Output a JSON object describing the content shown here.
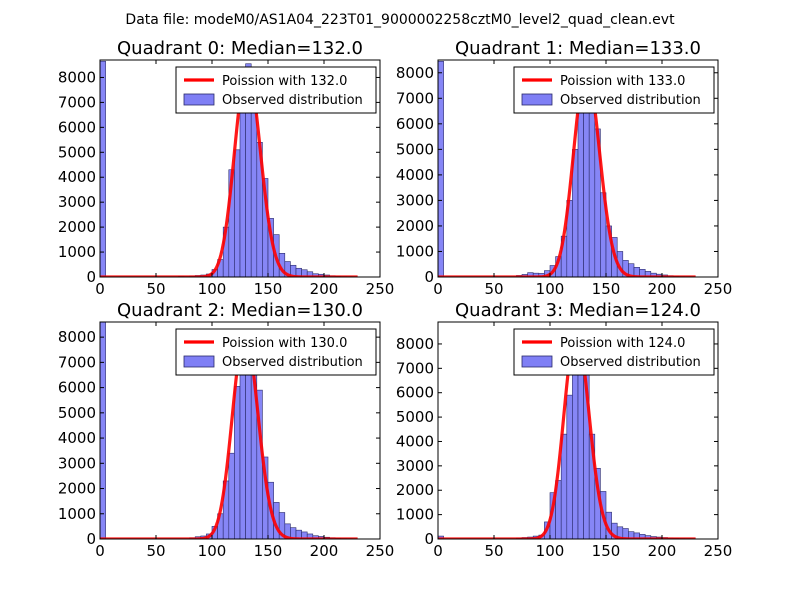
{
  "figure": {
    "suptitle": "Data file: modeM0/AS1A04_223T01_9000002258cztM0_level2_quad_clean.evt"
  },
  "chart_data": [
    {
      "type": "bar",
      "title": "Quadrant 0: Median=132.0",
      "xlabel": "",
      "ylabel": "",
      "xlim": [
        0,
        250
      ],
      "ylim": [
        0,
        8700
      ],
      "x_ticks": [
        0,
        50,
        100,
        150,
        200,
        250
      ],
      "y_ticks": [
        0,
        1000,
        2000,
        3000,
        4000,
        5000,
        6000,
        7000,
        8000
      ],
      "legend_position": "top-right",
      "series": [
        {
          "name": "Observed distribution",
          "kind": "histogram",
          "color": "#7f7ff5",
          "bin_width": 5,
          "bins": [
            [
              0,
              8650
            ],
            [
              70,
              30
            ],
            [
              75,
              20
            ],
            [
              80,
              40
            ],
            [
              85,
              60
            ],
            [
              90,
              80
            ],
            [
              95,
              120
            ],
            [
              100,
              300
            ],
            [
              105,
              700
            ],
            [
              110,
              2000
            ],
            [
              115,
              4300
            ],
            [
              120,
              5100
            ],
            [
              125,
              7050
            ],
            [
              130,
              8550
            ],
            [
              135,
              7450
            ],
            [
              140,
              5400
            ],
            [
              145,
              3950
            ],
            [
              150,
              2350
            ],
            [
              155,
              1700
            ],
            [
              160,
              950
            ],
            [
              165,
              620
            ],
            [
              170,
              470
            ],
            [
              175,
              350
            ],
            [
              180,
              290
            ],
            [
              185,
              210
            ],
            [
              190,
              130
            ],
            [
              195,
              110
            ],
            [
              200,
              80
            ],
            [
              205,
              50
            ],
            [
              210,
              30
            ],
            [
              215,
              20
            ],
            [
              220,
              15
            ],
            [
              225,
              10
            ],
            [
              230,
              5
            ],
            [
              235,
              3
            ]
          ]
        },
        {
          "name": "Poission with 132.0",
          "kind": "poisson",
          "color": "#ff0000",
          "mean": 132.0,
          "peak": 8350
        }
      ]
    },
    {
      "type": "bar",
      "title": "Quadrant 1: Median=133.0",
      "xlabel": "",
      "ylabel": "",
      "xlim": [
        0,
        250
      ],
      "ylim": [
        0,
        8500
      ],
      "x_ticks": [
        0,
        50,
        100,
        150,
        200,
        250
      ],
      "y_ticks": [
        0,
        1000,
        2000,
        3000,
        4000,
        5000,
        6000,
        7000,
        8000
      ],
      "legend_position": "top-right",
      "series": [
        {
          "name": "Observed distribution",
          "kind": "histogram",
          "color": "#7f7ff5",
          "bin_width": 5,
          "bins": [
            [
              0,
              8450
            ],
            [
              70,
              60
            ],
            [
              75,
              100
            ],
            [
              80,
              170
            ],
            [
              85,
              150
            ],
            [
              90,
              140
            ],
            [
              95,
              250
            ],
            [
              100,
              450
            ],
            [
              105,
              800
            ],
            [
              110,
              1600
            ],
            [
              115,
              3000
            ],
            [
              120,
              5000
            ],
            [
              125,
              6500
            ],
            [
              130,
              7750
            ],
            [
              135,
              7200
            ],
            [
              140,
              5800
            ],
            [
              145,
              3300
            ],
            [
              150,
              2000
            ],
            [
              155,
              1550
            ],
            [
              160,
              1000
            ],
            [
              165,
              650
            ],
            [
              170,
              520
            ],
            [
              175,
              380
            ],
            [
              180,
              300
            ],
            [
              185,
              220
            ],
            [
              190,
              150
            ],
            [
              195,
              110
            ],
            [
              200,
              80
            ],
            [
              205,
              50
            ],
            [
              210,
              30
            ],
            [
              215,
              20
            ],
            [
              220,
              15
            ],
            [
              225,
              10
            ],
            [
              230,
              5
            ],
            [
              235,
              3
            ]
          ]
        },
        {
          "name": "Poission with 133.0",
          "kind": "poisson",
          "color": "#ff0000",
          "mean": 133.0,
          "peak": 8100
        }
      ]
    },
    {
      "type": "bar",
      "title": "Quadrant 2: Median=130.0",
      "xlabel": "",
      "ylabel": "",
      "xlim": [
        0,
        250
      ],
      "ylim": [
        0,
        8600
      ],
      "x_ticks": [
        0,
        50,
        100,
        150,
        200,
        250
      ],
      "y_ticks": [
        0,
        1000,
        2000,
        3000,
        4000,
        5000,
        6000,
        7000,
        8000
      ],
      "legend_position": "top-right",
      "series": [
        {
          "name": "Observed distribution",
          "kind": "histogram",
          "color": "#7f7ff5",
          "bin_width": 5,
          "bins": [
            [
              0,
              8600
            ],
            [
              80,
              50
            ],
            [
              85,
              90
            ],
            [
              90,
              120
            ],
            [
              95,
              200
            ],
            [
              100,
              500
            ],
            [
              105,
              1000
            ],
            [
              110,
              2300
            ],
            [
              115,
              3400
            ],
            [
              120,
              6050
            ],
            [
              125,
              7550
            ],
            [
              130,
              8250
            ],
            [
              135,
              7200
            ],
            [
              140,
              5900
            ],
            [
              145,
              3250
            ],
            [
              150,
              2250
            ],
            [
              155,
              1450
            ],
            [
              160,
              1050
            ],
            [
              165,
              600
            ],
            [
              170,
              450
            ],
            [
              175,
              350
            ],
            [
              180,
              280
            ],
            [
              185,
              200
            ],
            [
              190,
              130
            ],
            [
              195,
              100
            ],
            [
              200,
              70
            ],
            [
              205,
              50
            ],
            [
              210,
              30
            ],
            [
              215,
              20
            ],
            [
              220,
              15
            ],
            [
              225,
              10
            ]
          ]
        },
        {
          "name": "Poission with 130.0",
          "kind": "poisson",
          "color": "#ff0000",
          "mean": 130.0,
          "peak": 8150
        }
      ]
    },
    {
      "type": "bar",
      "title": "Quadrant 3: Median=124.0",
      "xlabel": "",
      "ylabel": "",
      "xlim": [
        0,
        250
      ],
      "ylim": [
        0,
        8900
      ],
      "x_ticks": [
        0,
        50,
        100,
        150,
        200,
        250
      ],
      "y_ticks": [
        0,
        1000,
        2000,
        3000,
        4000,
        5000,
        6000,
        7000,
        8000
      ],
      "legend_position": "top-right",
      "series": [
        {
          "name": "Observed distribution",
          "kind": "histogram",
          "color": "#7f7ff5",
          "bin_width": 5,
          "bins": [
            [
              0,
              120
            ],
            [
              70,
              40
            ],
            [
              75,
              60
            ],
            [
              80,
              80
            ],
            [
              85,
              120
            ],
            [
              90,
              160
            ],
            [
              95,
              700
            ],
            [
              100,
              1900
            ],
            [
              105,
              2400
            ],
            [
              110,
              4300
            ],
            [
              115,
              5900
            ],
            [
              120,
              7700
            ],
            [
              125,
              8600
            ],
            [
              130,
              7600
            ],
            [
              135,
              4300
            ],
            [
              140,
              2900
            ],
            [
              145,
              1950
            ],
            [
              150,
              1100
            ],
            [
              155,
              650
            ],
            [
              160,
              500
            ],
            [
              165,
              430
            ],
            [
              170,
              300
            ],
            [
              175,
              250
            ],
            [
              180,
              190
            ],
            [
              185,
              140
            ],
            [
              190,
              100
            ],
            [
              195,
              80
            ],
            [
              200,
              60
            ],
            [
              205,
              40
            ],
            [
              210,
              30
            ],
            [
              215,
              20
            ],
            [
              220,
              15
            ],
            [
              225,
              10
            ]
          ]
        },
        {
          "name": "Poission with 124.0",
          "kind": "poisson",
          "color": "#ff0000",
          "mean": 124.0,
          "peak": 8500
        }
      ]
    }
  ]
}
